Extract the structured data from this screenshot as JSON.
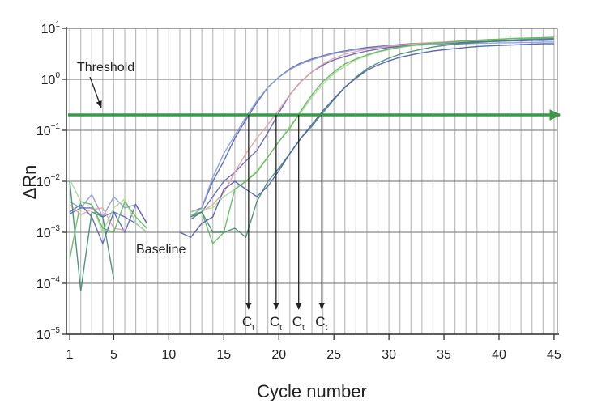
{
  "chart_data": {
    "type": "line",
    "xlabel": "Cycle number",
    "ylabel": "ΔRn",
    "xlim": [
      0.7,
      45.3
    ],
    "ylim": [
      1e-05,
      10
    ],
    "yscale": "log",
    "x_ticks": [
      1,
      5,
      10,
      15,
      20,
      25,
      30,
      35,
      40,
      45
    ],
    "y_ticks": [
      {
        "base": "10",
        "exp": "1",
        "value": 10
      },
      {
        "base": "10",
        "exp": "0",
        "value": 1
      },
      {
        "base": "10",
        "exp": "−1",
        "value": 0.1
      },
      {
        "base": "10",
        "exp": "−2",
        "value": 0.01
      },
      {
        "base": "10",
        "exp": "−3",
        "value": 0.001
      },
      {
        "base": "10",
        "exp": "−4",
        "value": 0.0001
      },
      {
        "base": "10",
        "exp": "−5",
        "value": 1e-05
      }
    ],
    "grid": true,
    "threshold": {
      "value": 0.2,
      "label": "Threshold",
      "color": "#3a9a4a"
    },
    "baseline_label": "Baseline",
    "ct_markers": [
      {
        "x": 17.25,
        "label": "C",
        "sub": "t"
      },
      {
        "x": 19.75,
        "label": "C",
        "sub": "t"
      },
      {
        "x": 21.8,
        "label": "C",
        "sub": "t"
      },
      {
        "x": 23.9,
        "label": "C",
        "sub": "t"
      }
    ],
    "cycles": [
      1,
      2,
      3,
      4,
      5,
      6,
      7,
      8,
      11,
      12,
      13,
      14,
      15,
      16,
      17,
      18,
      19,
      20,
      21,
      22,
      23,
      24,
      25,
      26,
      27,
      28,
      29,
      30,
      31,
      32,
      33,
      34,
      35,
      36,
      37,
      38,
      39,
      40,
      41,
      42,
      43,
      44,
      45
    ],
    "series": [
      {
        "color": "#5063b8",
        "values": [
          0.0025,
          0.0035,
          0.002,
          0.0006,
          0.0025,
          0.002,
          0.0015,
          0.001,
          null,
          0.0025,
          0.003,
          0.01,
          0.025,
          0.07,
          0.16,
          0.35,
          0.7,
          1.1,
          1.6,
          2.1,
          2.5,
          2.9,
          3.3,
          3.6,
          3.9,
          4.2,
          4.4,
          4.6,
          4.8,
          5.0,
          5.1,
          5.2,
          5.3,
          5.4,
          5.5,
          5.5,
          5.6,
          5.6,
          5.7,
          5.7,
          5.8,
          5.8,
          5.9
        ]
      },
      {
        "color": "#8c9ad6",
        "values": [
          0.004,
          0.003,
          0.0055,
          0.002,
          0.005,
          0.003,
          0.0035,
          0.0015,
          null,
          0.002,
          0.003,
          0.012,
          0.035,
          0.08,
          0.18,
          0.38,
          0.7,
          1.1,
          1.55,
          2.0,
          2.4,
          2.8,
          3.2,
          3.5,
          3.8,
          4.0,
          4.2,
          4.4,
          4.5,
          4.6,
          4.7,
          4.8,
          4.9,
          5.0,
          5.0,
          5.1,
          5.1,
          5.2,
          5.2,
          5.3,
          5.3,
          5.4,
          5.4
        ]
      },
      {
        "color": "#5b5fb5",
        "values": [
          0.0023,
          0.003,
          0.003,
          0.002,
          0.0025,
          0.001,
          0.0035,
          0.0015,
          null,
          0.0018,
          0.0025,
          0.005,
          0.01,
          0.015,
          0.025,
          0.04,
          0.09,
          0.22,
          0.5,
          0.9,
          1.4,
          1.9,
          2.4,
          2.8,
          3.2,
          3.6,
          3.9,
          4.2,
          4.4,
          4.6,
          4.8,
          5.0,
          5.1,
          5.2,
          5.3,
          5.4,
          5.5,
          5.6,
          5.7,
          5.8,
          5.9,
          6.0,
          6.1
        ]
      },
      {
        "color": "#e8a0a0",
        "values": [
          0.0035,
          0.0022,
          0.0028,
          0.003,
          0.0012,
          0.0011,
          null,
          null,
          null,
          0.002,
          0.0025,
          0.0035,
          0.006,
          0.015,
          0.035,
          0.07,
          0.13,
          0.25,
          0.5,
          0.9,
          1.4,
          2.0,
          2.6,
          3.1,
          3.5,
          3.9,
          4.2,
          4.5,
          4.7,
          4.9,
          5.1,
          5.3,
          5.4,
          5.6,
          5.7,
          5.9,
          6.0,
          6.1,
          6.2,
          6.3,
          6.4,
          6.5,
          6.6
        ]
      },
      {
        "color": "#a8d890",
        "values": [
          0.011,
          0.004,
          0.0035,
          0.001,
          0.003,
          0.0045,
          0.0015,
          0.001,
          null,
          0.0025,
          0.0028,
          0.003,
          0.005,
          0.007,
          0.01,
          0.016,
          0.03,
          0.06,
          0.12,
          0.22,
          0.45,
          0.8,
          1.3,
          1.8,
          2.4,
          2.9,
          3.4,
          3.8,
          4.2,
          4.5,
          4.8,
          5.0,
          5.2,
          5.4,
          5.6,
          5.8,
          5.9,
          6.0,
          6.2,
          6.3,
          6.4,
          6.5,
          6.6
        ]
      },
      {
        "color": "#5cb85c",
        "values": [
          0.0003,
          0.004,
          0.0035,
          0.0012,
          0.001,
          0.004,
          0.002,
          0.0012,
          null,
          0.0022,
          0.0025,
          0.0006,
          0.001,
          0.007,
          0.01,
          0.015,
          0.03,
          0.06,
          0.11,
          0.24,
          0.5,
          0.9,
          1.4,
          2.0,
          2.5,
          3.0,
          3.5,
          3.9,
          4.3,
          4.6,
          4.9,
          5.1,
          5.3,
          5.5,
          5.7,
          5.8,
          6.0,
          6.1,
          6.3,
          6.4,
          6.5,
          6.6,
          6.7
        ]
      },
      {
        "color": "#3d8a6e",
        "values": [
          0.01,
          7e-05,
          0.0025,
          0.002,
          0.00012,
          null,
          null,
          null,
          null,
          0.002,
          0.0025,
          0.001,
          0.001,
          0.0012,
          0.0008,
          0.004,
          0.01,
          0.018,
          0.035,
          0.07,
          0.12,
          0.22,
          0.4,
          0.7,
          1.1,
          1.6,
          2.1,
          2.6,
          3.1,
          3.5,
          3.9,
          4.3,
          4.6,
          4.9,
          5.1,
          5.3,
          5.5,
          5.7,
          5.8,
          6.0,
          6.1,
          6.2,
          6.3
        ]
      },
      {
        "color": "#4a5cb0",
        "values": [
          null,
          null,
          null,
          null,
          null,
          null,
          null,
          null,
          0.001,
          0.0008,
          0.0015,
          0.002,
          0.007,
          0.01,
          0.007,
          0.005,
          0.008,
          0.016,
          0.035,
          0.07,
          0.13,
          0.24,
          0.42,
          0.7,
          1.05,
          1.5,
          1.9,
          2.3,
          2.7,
          3.0,
          3.3,
          3.6,
          3.8,
          4.0,
          4.2,
          4.4,
          4.5,
          4.6,
          4.7,
          4.8,
          4.9,
          5.0,
          5.0
        ]
      }
    ]
  }
}
